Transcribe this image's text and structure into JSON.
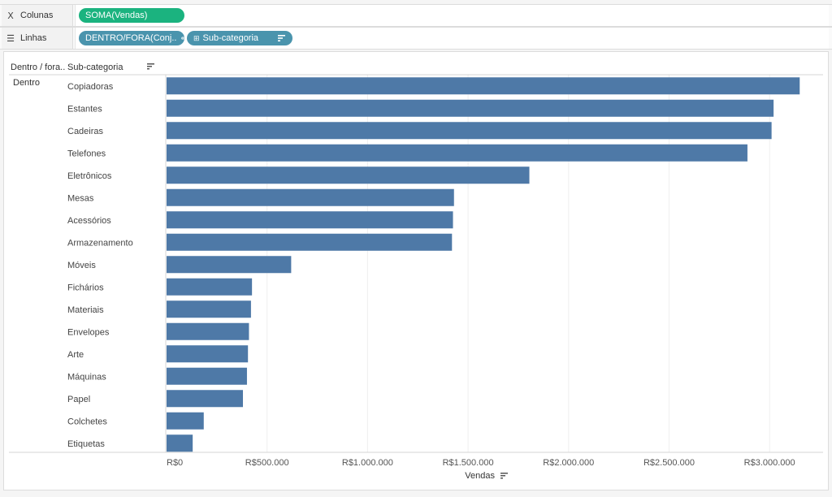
{
  "shelves": {
    "columns": {
      "label": "Colunas",
      "icon": "columns-icon",
      "pills": [
        {
          "text": "SOMA(Vendas)",
          "color": "#1bb37f"
        }
      ]
    },
    "rows": {
      "label": "Linhas",
      "icon": "rows-icon",
      "pills": [
        {
          "text": "DENTRO/FORA(Conj..",
          "icon": "set-icon",
          "color": "#4a94ad"
        },
        {
          "text": "Sub-categoria",
          "icon": "plus-square-icon",
          "sort_icon": "sort-desc-icon",
          "color": "#4a94ad"
        }
      ]
    }
  },
  "view": {
    "header_col1": "Dentro / fora..",
    "header_col2": "Sub-categoria",
    "header_sort_icon": "sort-desc-icon",
    "group_label": "Dentro",
    "axis_title": "Vendas",
    "axis_sort_icon": "sort-desc-icon",
    "bar_color": "#4e79a7"
  },
  "chart_data": {
    "type": "bar",
    "orientation": "horizontal",
    "categories": [
      "Copiadoras",
      "Estantes",
      "Cadeiras",
      "Telefones",
      "Eletrônicos",
      "Mesas",
      "Acessórios",
      "Armazenamento",
      "Móveis",
      "Fichários",
      "Materiais",
      "Envelopes",
      "Arte",
      "Máquinas",
      "Papel",
      "Colchetes",
      "Etiquetas"
    ],
    "series": [
      {
        "values": [
          3150000,
          3020000,
          3010000,
          2890000,
          1805000,
          1430000,
          1425000,
          1420000,
          620000,
          425000,
          420000,
          410000,
          405000,
          400000,
          380000,
          185000,
          130000
        ]
      }
    ],
    "xlabel": "Vendas",
    "xlim": [
      0,
      3250000
    ],
    "xticks": [
      0,
      500000,
      1000000,
      1500000,
      2000000,
      2500000,
      3000000
    ],
    "xtick_labels": [
      "R$0",
      "R$500.000",
      "R$1.000.000",
      "R$1.500.000",
      "R$2.000.000",
      "R$2.500.000",
      "R$3.000.000"
    ],
    "grid": true,
    "legend": "none"
  }
}
